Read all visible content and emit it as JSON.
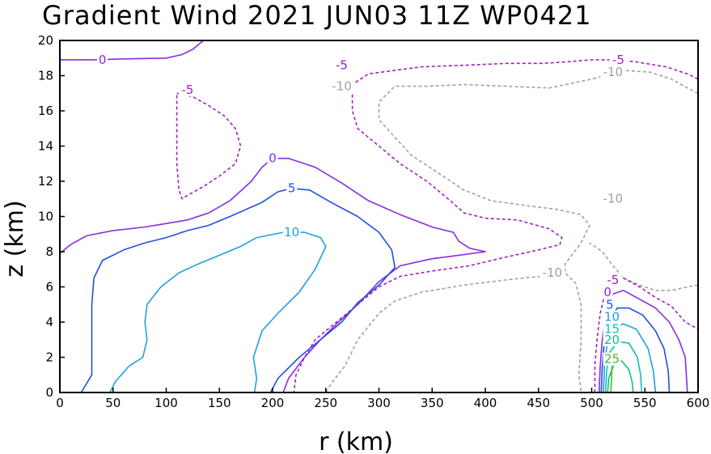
{
  "chart_data": {
    "type": "contour",
    "title": "Gradient Wind 2021 JUN03 11Z  WP0421",
    "xlabel": "r (km)",
    "ylabel": "z (km)",
    "xlim": [
      0,
      600
    ],
    "ylim": [
      0,
      20
    ],
    "xticks": [
      "0",
      "50",
      "100",
      "150",
      "200",
      "250",
      "300",
      "350",
      "400",
      "450",
      "500",
      "550",
      "600"
    ],
    "yticks": [
      "0",
      "2",
      "4",
      "6",
      "8",
      "10",
      "12",
      "14",
      "16",
      "18",
      "20"
    ],
    "colors": {
      "-10": "#a0a0a0",
      "-5": "#a020c0",
      "0": "#8a2be2",
      "5": "#2050e0",
      "10": "#1fa0e0",
      "15": "#10c0c0",
      "20": "#10c080",
      "25": "#40c020"
    },
    "contours": [
      {
        "level": 0,
        "dashed": false,
        "points": [
          [
            0,
            18.9
          ],
          [
            30,
            18.9
          ],
          [
            60,
            18.95
          ],
          [
            100,
            19.0
          ],
          [
            115,
            19.2
          ],
          [
            125,
            19.5
          ],
          [
            135,
            20
          ]
        ]
      },
      {
        "level": -5,
        "dashed": true,
        "points": [
          [
            110,
            17.0
          ],
          [
            125,
            16.8
          ],
          [
            140,
            16.3
          ],
          [
            155,
            15.7
          ],
          [
            165,
            15.0
          ],
          [
            170,
            14.0
          ],
          [
            165,
            13.0
          ],
          [
            150,
            12.3
          ],
          [
            135,
            11.7
          ],
          [
            120,
            11.2
          ],
          [
            115,
            11.0
          ],
          [
            112,
            11.5
          ],
          [
            110,
            13.0
          ],
          [
            110,
            15.0
          ],
          [
            110,
            17.0
          ]
        ]
      },
      {
        "level": -5,
        "dashed": true,
        "points": [
          [
            600,
            17.8
          ],
          [
            590,
            18.1
          ],
          [
            570,
            18.5
          ],
          [
            540,
            18.8
          ],
          [
            520,
            18.9
          ],
          [
            500,
            18.9
          ],
          [
            480,
            18.8
          ],
          [
            455,
            18.7
          ],
          [
            420,
            18.7
          ],
          [
            385,
            18.6
          ],
          [
            340,
            18.5
          ],
          [
            290,
            18.1
          ],
          [
            275,
            17.5
          ],
          [
            275,
            16.0
          ],
          [
            280,
            15.0
          ],
          [
            300,
            14.0
          ],
          [
            320,
            13.0
          ],
          [
            345,
            12.0
          ],
          [
            365,
            11.0
          ],
          [
            380,
            10.2
          ],
          [
            400,
            9.9
          ],
          [
            430,
            9.8
          ],
          [
            460,
            9.3
          ],
          [
            472,
            8.8
          ],
          [
            470,
            8.4
          ],
          [
            450,
            8.1
          ],
          [
            420,
            7.7
          ],
          [
            385,
            7.2
          ],
          [
            350,
            6.9
          ],
          [
            320,
            6.6
          ],
          [
            300,
            6.0
          ],
          [
            280,
            5.0
          ],
          [
            260,
            4.0
          ],
          [
            240,
            3.0
          ],
          [
            230,
            2.0
          ],
          [
            222,
            1.0
          ],
          [
            220,
            0
          ]
        ]
      },
      {
        "level": -10,
        "dashed": true,
        "points": [
          [
            600,
            17.0
          ],
          [
            590,
            17.3
          ],
          [
            575,
            17.8
          ],
          [
            555,
            18.2
          ],
          [
            530,
            18.3
          ],
          [
            500,
            17.8
          ],
          [
            460,
            17.3
          ],
          [
            420,
            17.4
          ],
          [
            380,
            17.5
          ],
          [
            345,
            17.4
          ],
          [
            315,
            17.4
          ],
          [
            300,
            16.5
          ],
          [
            300,
            15.5
          ],
          [
            315,
            14.5
          ],
          [
            330,
            13.5
          ],
          [
            355,
            12.5
          ],
          [
            380,
            11.5
          ],
          [
            405,
            10.9
          ],
          [
            440,
            10.6
          ],
          [
            468,
            10.4
          ],
          [
            490,
            10.1
          ],
          [
            498,
            9.5
          ],
          [
            490,
            8.5
          ],
          [
            480,
            7.7
          ],
          [
            475,
            7.3
          ],
          [
            475,
            6.8
          ],
          [
            485,
            6.2
          ],
          [
            490,
            5.0
          ],
          [
            490,
            3.0
          ],
          [
            488,
            1.0
          ],
          [
            490,
            0
          ]
        ]
      },
      {
        "level": -10,
        "dashed": true,
        "points": [
          [
            452,
            6.6
          ],
          [
            420,
            6.4
          ],
          [
            380,
            6.1
          ],
          [
            340,
            5.7
          ],
          [
            315,
            5.2
          ],
          [
            300,
            4.5
          ],
          [
            280,
            3.0
          ],
          [
            268,
            1.5
          ],
          [
            255,
            0.5
          ],
          [
            250,
            0
          ]
        ]
      },
      {
        "level": -10,
        "dashed": true,
        "points": [
          [
            600,
            6.1
          ],
          [
            590,
            6.0
          ],
          [
            575,
            5.8
          ],
          [
            560,
            5.8
          ],
          [
            545,
            6.1
          ],
          [
            530,
            6.5
          ],
          [
            520,
            7.2
          ],
          [
            510,
            8.0
          ],
          [
            498,
            8.5
          ]
        ]
      },
      {
        "level": 0,
        "dashed": false,
        "points": [
          [
            0,
            7.9
          ],
          [
            10,
            8.4
          ],
          [
            25,
            8.9
          ],
          [
            50,
            9.2
          ],
          [
            80,
            9.4
          ],
          [
            100,
            9.6
          ],
          [
            120,
            9.8
          ],
          [
            140,
            10.2
          ],
          [
            160,
            10.9
          ],
          [
            180,
            12.0
          ],
          [
            190,
            12.8
          ],
          [
            200,
            13.3
          ],
          [
            215,
            13.3
          ],
          [
            240,
            12.8
          ],
          [
            265,
            11.9
          ],
          [
            290,
            10.9
          ],
          [
            320,
            10.1
          ],
          [
            350,
            9.4
          ],
          [
            370,
            9.1
          ],
          [
            375,
            8.6
          ],
          [
            385,
            8.2
          ],
          [
            400,
            8.0
          ],
          [
            375,
            7.8
          ],
          [
            350,
            7.6
          ],
          [
            320,
            7.2
          ],
          [
            300,
            6.3
          ],
          [
            280,
            5.0
          ],
          [
            262,
            4.0
          ],
          [
            245,
            3.0
          ],
          [
            230,
            2.0
          ],
          [
            215,
            0.8
          ],
          [
            210,
            0
          ]
        ]
      },
      {
        "level": 5,
        "dashed": false,
        "points": [
          [
            20,
            0
          ],
          [
            30,
            1.0
          ],
          [
            30,
            3.0
          ],
          [
            30,
            5.0
          ],
          [
            32,
            6.5
          ],
          [
            40,
            7.5
          ],
          [
            60,
            8.1
          ],
          [
            80,
            8.5
          ],
          [
            100,
            8.8
          ],
          [
            120,
            9.2
          ],
          [
            140,
            9.5
          ],
          [
            160,
            10.0
          ],
          [
            190,
            10.8
          ],
          [
            205,
            11.4
          ],
          [
            218,
            11.6
          ],
          [
            235,
            11.5
          ],
          [
            255,
            10.8
          ],
          [
            280,
            10.0
          ],
          [
            300,
            9.1
          ],
          [
            312,
            8.1
          ],
          [
            315,
            7.1
          ],
          [
            300,
            6.1
          ],
          [
            280,
            5.1
          ],
          [
            265,
            4.0
          ],
          [
            245,
            3.0
          ],
          [
            225,
            2.0
          ],
          [
            205,
            0.8
          ],
          [
            198,
            0
          ]
        ]
      },
      {
        "level": 10,
        "dashed": false,
        "points": [
          [
            47,
            0
          ],
          [
            52,
            0.6
          ],
          [
            65,
            1.5
          ],
          [
            78,
            2.0
          ],
          [
            82,
            3.0
          ],
          [
            80,
            4.0
          ],
          [
            82,
            5.0
          ],
          [
            95,
            6.0
          ],
          [
            112,
            6.8
          ],
          [
            130,
            7.3
          ],
          [
            150,
            7.8
          ],
          [
            170,
            8.3
          ],
          [
            185,
            8.8
          ],
          [
            210,
            9.1
          ],
          [
            230,
            9.1
          ],
          [
            245,
            8.8
          ],
          [
            250,
            8.3
          ],
          [
            240,
            7.0
          ],
          [
            225,
            5.7
          ],
          [
            205,
            4.5
          ],
          [
            190,
            3.5
          ],
          [
            182,
            2.0
          ],
          [
            185,
            0.8
          ],
          [
            183,
            0
          ]
        ]
      },
      {
        "level": -5,
        "dashed": true,
        "points": [
          [
            503,
            0
          ],
          [
            503,
            1.5
          ],
          [
            505,
            3.0
          ],
          [
            508,
            4.5
          ],
          [
            512,
            5.5
          ],
          [
            520,
            6.3
          ],
          [
            530,
            6.5
          ],
          [
            545,
            6.0
          ],
          [
            560,
            5.4
          ],
          [
            575,
            4.9
          ],
          [
            588,
            4.0
          ],
          [
            600,
            3.6
          ]
        ]
      },
      {
        "level": 0,
        "dashed": false,
        "points": [
          [
            507,
            0
          ],
          [
            508,
            1.5
          ],
          [
            510,
            3.0
          ],
          [
            513,
            4.5
          ],
          [
            520,
            5.6
          ],
          [
            530,
            5.8
          ],
          [
            545,
            5.3
          ],
          [
            560,
            4.8
          ],
          [
            573,
            4.0
          ],
          [
            582,
            3.0
          ],
          [
            588,
            2.0
          ],
          [
            590,
            0
          ]
        ]
      },
      {
        "level": 5,
        "dashed": false,
        "points": [
          [
            509,
            0
          ],
          [
            510,
            1.5
          ],
          [
            512,
            3.0
          ],
          [
            516,
            4.0
          ],
          [
            524,
            4.8
          ],
          [
            535,
            4.8
          ],
          [
            548,
            4.4
          ],
          [
            560,
            3.5
          ],
          [
            568,
            2.5
          ],
          [
            572,
            1.2
          ],
          [
            573,
            0
          ]
        ]
      },
      {
        "level": 10,
        "dashed": false,
        "points": [
          [
            511,
            0
          ],
          [
            512,
            1.5
          ],
          [
            515,
            3.0
          ],
          [
            520,
            3.7
          ],
          [
            530,
            3.9
          ],
          [
            542,
            3.6
          ],
          [
            553,
            2.5
          ],
          [
            558,
            1.2
          ],
          [
            560,
            0
          ]
        ]
      },
      {
        "level": 15,
        "dashed": false,
        "points": [
          [
            513,
            0
          ],
          [
            514,
            1.2
          ],
          [
            517,
            2.3
          ],
          [
            525,
            2.9
          ],
          [
            535,
            2.8
          ],
          [
            543,
            2.0
          ],
          [
            546,
            1.0
          ],
          [
            547,
            0
          ]
        ]
      },
      {
        "level": 20,
        "dashed": false,
        "points": [
          [
            515,
            0
          ],
          [
            516,
            0.8
          ],
          [
            521,
            1.6
          ],
          [
            528,
            1.8
          ],
          [
            535,
            1.3
          ],
          [
            538,
            0.6
          ],
          [
            539,
            0
          ]
        ]
      },
      {
        "level": 25,
        "dashed": false,
        "points": [
          [
            518,
            0
          ],
          [
            518.5,
            0.6
          ],
          [
            519,
            1.5
          ]
        ]
      }
    ],
    "labels": [
      {
        "text": "0",
        "level": 0,
        "x": 40,
        "y": 18.9
      },
      {
        "text": "-5",
        "level": -5,
        "x": 120,
        "y": 17.2
      },
      {
        "text": "-5",
        "level": -5,
        "x": 265,
        "y": 18.6
      },
      {
        "text": "-10",
        "level": -10,
        "x": 265,
        "y": 17.4
      },
      {
        "text": "-5",
        "level": -5,
        "x": 525,
        "y": 18.9
      },
      {
        "text": "-10",
        "level": -10,
        "x": 520,
        "y": 18.2
      },
      {
        "text": "-10",
        "level": -10,
        "x": 520,
        "y": 11.0
      },
      {
        "text": "0",
        "level": 0,
        "x": 200,
        "y": 13.3
      },
      {
        "text": "5",
        "level": 5,
        "x": 218,
        "y": 11.6
      },
      {
        "text": "10",
        "level": 10,
        "x": 218,
        "y": 9.1
      },
      {
        "text": "-10",
        "level": -10,
        "x": 463,
        "y": 6.8
      },
      {
        "text": "-5",
        "level": -5,
        "x": 520,
        "y": 6.4
      },
      {
        "text": "0",
        "level": 0,
        "x": 515,
        "y": 5.7
      },
      {
        "text": "5",
        "level": 5,
        "x": 517,
        "y": 5.0
      },
      {
        "text": "10",
        "level": 10,
        "x": 519,
        "y": 4.3
      },
      {
        "text": "15",
        "level": 15,
        "x": 519,
        "y": 3.6
      },
      {
        "text": "20",
        "level": 20,
        "x": 519,
        "y": 3.0
      },
      {
        "text": "25",
        "level": 25,
        "x": 519,
        "y": 1.9
      }
    ]
  }
}
